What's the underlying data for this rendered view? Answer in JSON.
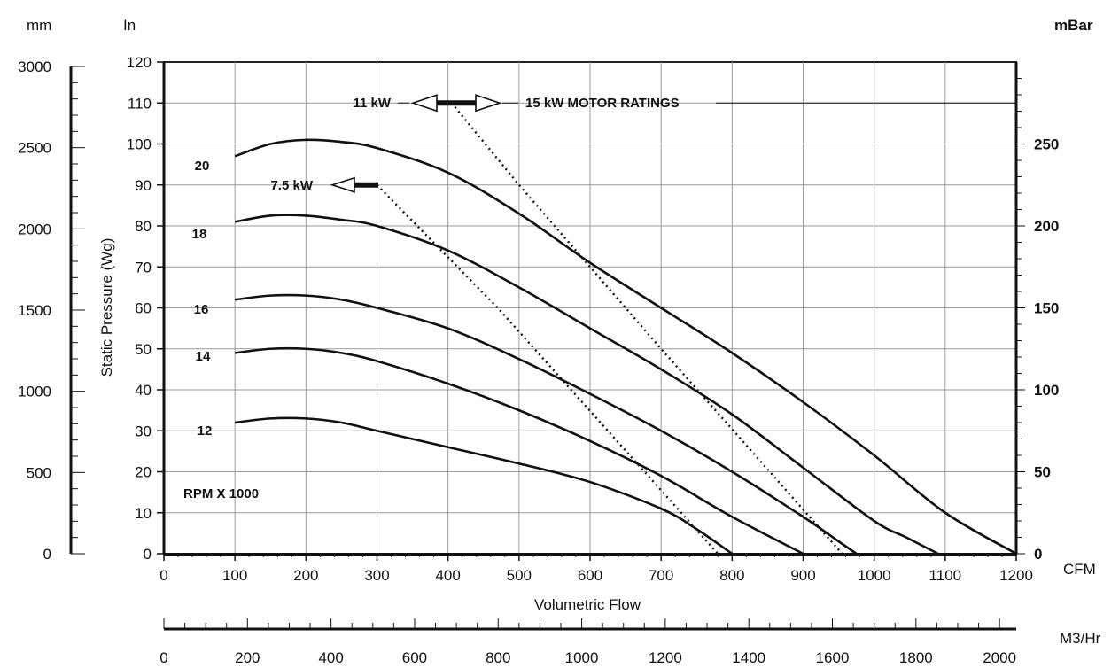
{
  "chart_data": {
    "type": "line",
    "xlabel": "Volumetric Flow",
    "ylabel": "Static Pressure (Wg)",
    "units": {
      "left_outer": "mm",
      "left_inner": "In",
      "right": "mBar",
      "x_primary": "CFM",
      "x_secondary": "M3/Hr"
    },
    "xlim": [
      0,
      1200
    ],
    "ylim": [
      0,
      120
    ],
    "grid": true,
    "x_ticks": [
      "0",
      "100",
      "200",
      "300",
      "400",
      "500",
      "600",
      "700",
      "800",
      "900",
      "1000",
      "1100",
      "1200"
    ],
    "y_ticks": [
      "0",
      "10",
      "20",
      "30",
      "40",
      "50",
      "60",
      "70",
      "80",
      "90",
      "100",
      "110",
      "120"
    ],
    "mm_ticks": [
      "0",
      "500",
      "1000",
      "1500",
      "2000",
      "2500",
      "3000"
    ],
    "mbar_ticks": [
      "0",
      "50",
      "100",
      "150",
      "200",
      "250"
    ],
    "m3hr_ticks": [
      "0",
      "200",
      "400",
      "600",
      "800",
      "1000",
      "1200",
      "1400",
      "1600",
      "1800",
      "2000"
    ],
    "speed_unit_label": "RPM X 1000",
    "series": [
      {
        "name": "20",
        "points": [
          [
            100,
            97
          ],
          [
            150,
            100
          ],
          [
            200,
            101
          ],
          [
            250,
            100.5
          ],
          [
            300,
            99
          ],
          [
            400,
            93
          ],
          [
            500,
            83
          ],
          [
            600,
            71
          ],
          [
            700,
            60
          ],
          [
            800,
            49
          ],
          [
            900,
            37
          ],
          [
            1000,
            24
          ],
          [
            1100,
            10
          ],
          [
            1200,
            0
          ]
        ]
      },
      {
        "name": "18",
        "points": [
          [
            100,
            81
          ],
          [
            150,
            82.5
          ],
          [
            200,
            82.5
          ],
          [
            250,
            81.5
          ],
          [
            300,
            80
          ],
          [
            400,
            74
          ],
          [
            500,
            65
          ],
          [
            600,
            55
          ],
          [
            700,
            45
          ],
          [
            800,
            34
          ],
          [
            900,
            21
          ],
          [
            1000,
            8
          ],
          [
            1045,
            4
          ],
          [
            1090,
            0
          ]
        ]
      },
      {
        "name": "16",
        "points": [
          [
            100,
            62
          ],
          [
            150,
            63
          ],
          [
            200,
            63
          ],
          [
            250,
            62
          ],
          [
            300,
            60
          ],
          [
            400,
            55
          ],
          [
            500,
            47.5
          ],
          [
            600,
            39
          ],
          [
            700,
            30
          ],
          [
            800,
            20
          ],
          [
            900,
            9
          ],
          [
            950,
            3
          ],
          [
            975,
            0
          ]
        ]
      },
      {
        "name": "14",
        "points": [
          [
            100,
            49
          ],
          [
            150,
            50
          ],
          [
            200,
            50
          ],
          [
            250,
            49
          ],
          [
            300,
            47
          ],
          [
            400,
            41.5
          ],
          [
            500,
            35
          ],
          [
            600,
            27.5
          ],
          [
            700,
            19
          ],
          [
            800,
            9
          ],
          [
            900,
            0
          ]
        ]
      },
      {
        "name": "12",
        "points": [
          [
            100,
            32
          ],
          [
            150,
            33
          ],
          [
            200,
            33
          ],
          [
            250,
            32
          ],
          [
            300,
            30
          ],
          [
            400,
            26
          ],
          [
            500,
            22
          ],
          [
            600,
            17.5
          ],
          [
            700,
            11
          ],
          [
            750,
            6
          ],
          [
            800,
            0
          ]
        ]
      }
    ],
    "motor_ratings": [
      {
        "label": "7.5 kW",
        "line": [
          [
            300,
            90
          ],
          [
            470,
            60
          ],
          [
            780,
            0
          ]
        ]
      },
      {
        "label": "11 kW",
        "line": [
          [
            405,
            110
          ],
          [
            500,
            90
          ],
          [
            700,
            50
          ],
          [
            955,
            0
          ]
        ]
      }
    ],
    "motor_ratings_label": "15 kW MOTOR RATINGS"
  }
}
